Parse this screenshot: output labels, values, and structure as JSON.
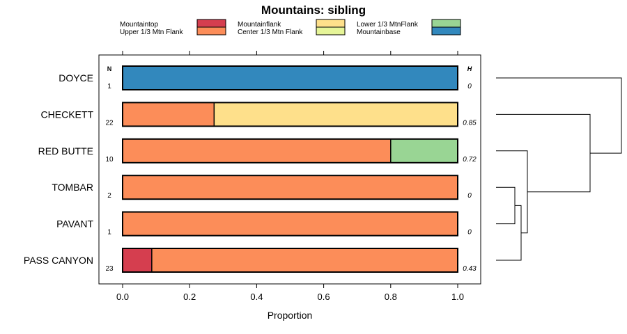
{
  "chart_data": {
    "type": "bar",
    "stacked": true,
    "title": "Mountains: sibling",
    "xlabel": "Proportion",
    "ylabel": "",
    "xlim": [
      0,
      1
    ],
    "xticks": [
      "0.0",
      "0.2",
      "0.4",
      "0.6",
      "0.8",
      "1.0"
    ],
    "xtick_values": [
      0,
      0.2,
      0.4,
      0.6,
      0.8,
      1.0
    ],
    "legend_placement": "top",
    "legend": [
      {
        "key": "mountaintop",
        "label": "Mountaintop",
        "color": "#d53e4f"
      },
      {
        "key": "upper",
        "label": "Upper 1/3 Mtn Flank",
        "color": "#fc8d59"
      },
      {
        "key": "mountainflank",
        "label": "Mountainflank",
        "color": "#fee08b"
      },
      {
        "key": "center",
        "label": "Center 1/3 Mtn Flank",
        "color": "#e6f598"
      },
      {
        "key": "lower",
        "label": "Lower 1/3 MtnFlank",
        "color": "#99d594"
      },
      {
        "key": "base",
        "label": "Mountainbase",
        "color": "#3288bd"
      }
    ],
    "n_header": "N",
    "h_header": "H",
    "categories": [
      {
        "name": "DOYCE",
        "n": "1",
        "h": "0",
        "segments": [
          {
            "key": "base",
            "value": 1.0
          }
        ]
      },
      {
        "name": "CHECKETT",
        "n": "22",
        "h": "0.85",
        "segments": [
          {
            "key": "upper",
            "value": 0.273
          },
          {
            "key": "mountainflank",
            "value": 0.727
          }
        ]
      },
      {
        "name": "RED BUTTE",
        "n": "10",
        "h": "0.72",
        "segments": [
          {
            "key": "upper",
            "value": 0.8
          },
          {
            "key": "lower",
            "value": 0.2
          }
        ]
      },
      {
        "name": "TOMBAR",
        "n": "2",
        "h": "0",
        "segments": [
          {
            "key": "upper",
            "value": 1.0
          }
        ]
      },
      {
        "name": "PAVANT",
        "n": "1",
        "h": "0",
        "segments": [
          {
            "key": "upper",
            "value": 1.0
          }
        ]
      },
      {
        "name": "PASS CANYON",
        "n": "23",
        "h": "0.43",
        "segments": [
          {
            "key": "mountaintop",
            "value": 0.087
          },
          {
            "key": "upper",
            "value": 0.913
          }
        ]
      }
    ],
    "dendrogram": {
      "description": "hierarchical clustering tree of the rows",
      "merges": [
        {
          "left": "TOMBAR",
          "right": "PAVANT",
          "height": 0.15
        },
        {
          "left": "TOMBAR+PAVANT",
          "right": "PASS CANYON",
          "height": 0.2
        },
        {
          "left": "RED BUTTE",
          "right": "TOMBAR+PAVANT+PASS CANYON",
          "height": 0.25
        },
        {
          "left": "CHECKETT",
          "right": "RED BUTTE+TOMBAR+PAVANT+PASS CANYON",
          "height": 0.75
        },
        {
          "left": "DOYCE",
          "right": "rest",
          "height": 1.0
        }
      ]
    }
  }
}
